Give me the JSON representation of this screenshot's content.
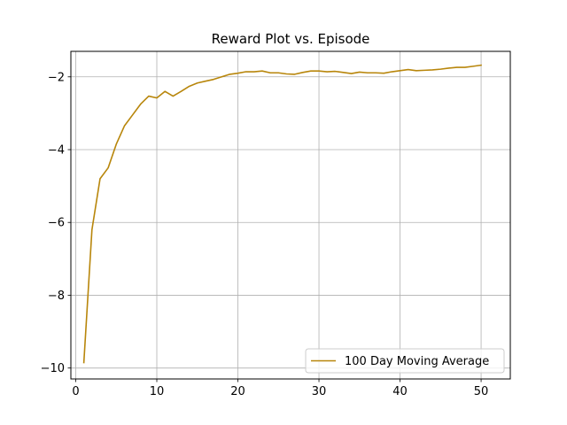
{
  "chart_data": {
    "type": "line",
    "title": "Reward Plot vs. Episode",
    "xlabel": "",
    "ylabel": "",
    "xlim": [
      -0.6,
      53.6
    ],
    "ylim": [
      -10.3,
      -1.3
    ],
    "xticks": [
      0,
      10,
      20,
      30,
      40,
      50
    ],
    "xtick_labels": [
      "0",
      "10",
      "20",
      "30",
      "40",
      "50"
    ],
    "yticks": [
      -10,
      -8,
      -6,
      -4,
      -2
    ],
    "ytick_labels": [
      "−10",
      "−8",
      "−6",
      "−4",
      "−2"
    ],
    "grid": true,
    "legend_position": "lower-right",
    "series": [
      {
        "name": "100 Day Moving Average",
        "color": "#b8860b",
        "x": [
          1,
          2,
          3,
          4,
          5,
          6,
          7,
          8,
          9,
          10,
          11,
          12,
          13,
          14,
          15,
          16,
          17,
          18,
          19,
          20,
          21,
          22,
          23,
          24,
          25,
          26,
          27,
          28,
          29,
          30,
          31,
          32,
          33,
          34,
          35,
          36,
          37,
          38,
          39,
          40,
          41,
          42,
          43,
          44,
          45,
          46,
          47,
          48,
          49,
          50
        ],
        "y": [
          -9.85,
          -6.2,
          -4.8,
          -4.5,
          -3.85,
          -3.35,
          -3.05,
          -2.75,
          -2.53,
          -2.58,
          -2.4,
          -2.53,
          -2.4,
          -2.26,
          -2.17,
          -2.12,
          -2.07,
          -2.0,
          -1.93,
          -1.9,
          -1.86,
          -1.86,
          -1.84,
          -1.89,
          -1.89,
          -1.92,
          -1.93,
          -1.88,
          -1.84,
          -1.84,
          -1.86,
          -1.85,
          -1.88,
          -1.91,
          -1.87,
          -1.89,
          -1.89,
          -1.9,
          -1.86,
          -1.83,
          -1.8,
          -1.83,
          -1.82,
          -1.81,
          -1.79,
          -1.76,
          -1.74,
          -1.74,
          -1.71,
          -1.68
        ]
      }
    ]
  }
}
